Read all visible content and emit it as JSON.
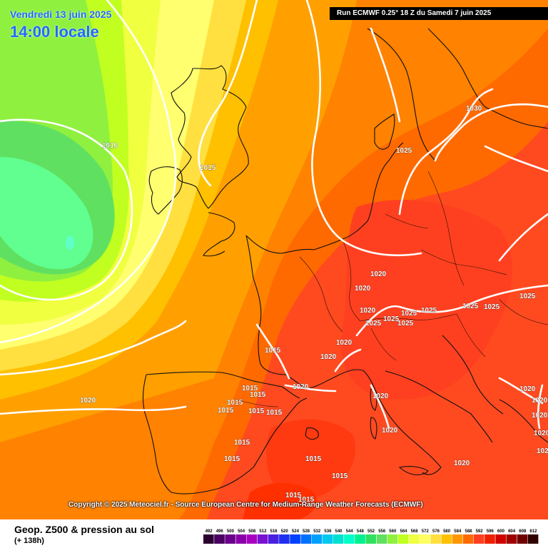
{
  "header": {
    "date": "Vendredi 13 juin 2025",
    "local_time": "14:00 locale",
    "run_info": "Run ECMWF 0.25° 18 Z du Samedi 7 juin 2025"
  },
  "copyright": "Copyright © 2025 Meteociel.fr - Source European Centre for Medium-Range Weather Forecasts (ECMWF)",
  "footer": {
    "product": "Geop. Z500 & pression au sol",
    "lead_time": "(+ 138h)"
  },
  "legend": {
    "values": [
      "492",
      "496",
      "500",
      "504",
      "508",
      "512",
      "516",
      "520",
      "524",
      "528",
      "532",
      "536",
      "540",
      "544",
      "548",
      "552",
      "556",
      "560",
      "564",
      "568",
      "572",
      "576",
      "580",
      "584",
      "588",
      "592",
      "596",
      "600",
      "604",
      "608",
      "612"
    ],
    "colors": [
      "#2b0030",
      "#4a0060",
      "#6a008a",
      "#8a00a8",
      "#a800c0",
      "#7a10d0",
      "#4a20e0",
      "#2030f0",
      "#0040ff",
      "#0070ff",
      "#00a0ff",
      "#00c8f0",
      "#00e0d0",
      "#00ffc8",
      "#00f090",
      "#30e060",
      "#60e060",
      "#90f040",
      "#c0ff20",
      "#f0ff40",
      "#ffff60",
      "#ffe040",
      "#ffc000",
      "#ff9600",
      "#ff6a00",
      "#ff4020",
      "#ee2000",
      "#d00000",
      "#a00000",
      "#700000",
      "#300000"
    ]
  },
  "isobar_labels": [
    {
      "text": "1010"
    },
    {
      "text": "1015"
    },
    {
      "text": "1030"
    },
    {
      "text": "1025"
    },
    {
      "text": "1020"
    },
    {
      "text": "1020"
    },
    {
      "text": "1020"
    },
    {
      "text": "1025"
    },
    {
      "text": "1025"
    },
    {
      "text": "1025"
    },
    {
      "text": "1025"
    },
    {
      "text": "1025"
    },
    {
      "text": "1025"
    },
    {
      "text": "1025"
    },
    {
      "text": "1025"
    },
    {
      "text": "1020"
    },
    {
      "text": "1020"
    },
    {
      "text": "1015"
    },
    {
      "text": "1020"
    },
    {
      "text": "1015"
    },
    {
      "text": "1015"
    },
    {
      "text": "1015"
    },
    {
      "text": "1015"
    },
    {
      "text": "1015"
    },
    {
      "text": "1015"
    },
    {
      "text": "1015"
    },
    {
      "text": "1015"
    },
    {
      "text": "1020"
    },
    {
      "text": "1020"
    },
    {
      "text": "1020"
    },
    {
      "text": "1020"
    },
    {
      "text": "1015"
    },
    {
      "text": "1015"
    },
    {
      "text": "1015"
    },
    {
      "text": "1015"
    },
    {
      "text": "1020"
    },
    {
      "text": "1020"
    },
    {
      "text": "1020"
    },
    {
      "text": "1020"
    },
    {
      "text": "1020"
    }
  ]
}
